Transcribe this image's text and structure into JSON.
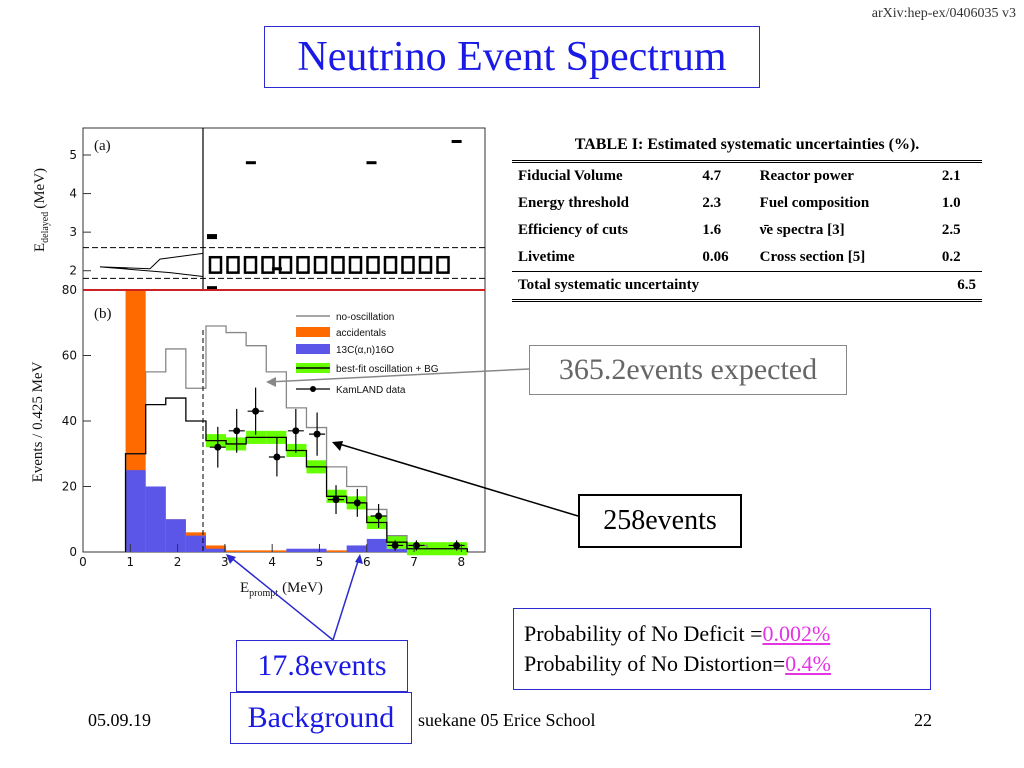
{
  "header": {
    "arxiv_ref": "arXiv:hep-ex/0406035 v3",
    "title": "Neutrino Event Spectrum"
  },
  "chart_data": [
    {
      "panel": "(a)",
      "type": "scatter",
      "ylabel": "E",
      "ylabel_subscript": "delayed",
      "ylabel_unit": "(MeV)",
      "y_ticks": [
        "2",
        "3",
        "4",
        "5"
      ],
      "ylim": [
        1.5,
        5.7
      ],
      "x": [
        3.55,
        4.1,
        6.1,
        7.9
      ],
      "y": [
        4.8,
        2.05,
        4.8,
        5.35
      ]
    },
    {
      "panel": "(b)",
      "type": "line",
      "xlabel": "E",
      "xlabel_subscript": "prompt",
      "xlabel_unit": "(MeV)",
      "ylabel": "Events / 0.425 MeV",
      "x_ticks": [
        "0",
        "1",
        "2",
        "3",
        "4",
        "5",
        "6",
        "7",
        "8"
      ],
      "y_ticks": [
        "0",
        "20",
        "40",
        "60",
        "80"
      ],
      "xlim": [
        0,
        8.5
      ],
      "ylim": [
        0,
        80
      ],
      "bin_edges": [
        0.9,
        1.325,
        1.75,
        2.175,
        2.6,
        3.025,
        3.45,
        3.875,
        4.3,
        4.725,
        5.15,
        5.575,
        6.0,
        6.425,
        6.85,
        7.275,
        7.7,
        8.125
      ],
      "series": [
        {
          "name": "no-oscillation",
          "values": [
            30,
            55,
            62,
            50,
            69,
            67,
            63,
            55,
            44,
            38,
            26,
            20,
            13,
            5,
            2,
            1,
            1
          ]
        },
        {
          "name": "accidentals",
          "values": [
            80,
            20,
            10,
            6,
            2,
            0.5,
            0.5,
            0.5,
            0.5,
            0.5,
            0.5,
            0.5,
            0.5,
            0,
            0,
            0,
            0
          ]
        },
        {
          "name": "13C(α,n)16O",
          "values": [
            25,
            20,
            10,
            5,
            1,
            0,
            0,
            0,
            1,
            1,
            0,
            2,
            4,
            1,
            0,
            0,
            0
          ]
        },
        {
          "name": "best-fit oscillation + BG",
          "values": [
            30,
            45,
            47,
            40,
            34,
            33,
            35,
            35,
            31,
            26,
            17,
            15,
            9,
            3,
            1,
            1,
            1
          ]
        }
      ],
      "data_series": {
        "name": "KamLAND data",
        "x": [
          2.85,
          3.25,
          3.65,
          4.1,
          4.5,
          4.95,
          5.35,
          5.8,
          6.25,
          6.6,
          7.05,
          7.9
        ],
        "y": [
          32,
          37,
          43,
          29,
          37,
          36,
          16,
          15,
          11,
          2,
          2,
          2
        ]
      }
    }
  ],
  "table": {
    "caption": "TABLE I: Estimated systematic uncertainties (%).",
    "rows": [
      [
        "Fiducial Volume",
        "4.7",
        "Reactor power",
        "2.1"
      ],
      [
        "Energy threshold",
        "2.3",
        "Fuel composition",
        "1.0"
      ],
      [
        "Efficiency of cuts",
        "1.6",
        "ν̄e spectra [3]",
        "2.5"
      ],
      [
        "Livetime",
        "0.06",
        "Cross section [5]",
        "0.2"
      ]
    ],
    "total_label": "Total systematic uncertainty",
    "total_value": "6.5"
  },
  "callouts": {
    "expected": "365.2events expected",
    "observed": "258events",
    "background_events": "17.8events",
    "background_label": "Background"
  },
  "probabilities": {
    "no_deficit_label": "Probability of No Deficit =",
    "no_deficit_value": "0.002%",
    "no_distortion_label": "Probability of No Distortion=",
    "no_distortion_value": "0.4%"
  },
  "footer": {
    "date": "05.09.19",
    "author": "suekane 05 Erice School",
    "page": "22"
  },
  "colors": {
    "title": "#1a1ae6",
    "accidentals": "#ff6a00",
    "c13": "#5b55e8",
    "bestfit": "#66ff00",
    "highlight": "#e633e6",
    "red_line": "#cc2222"
  }
}
